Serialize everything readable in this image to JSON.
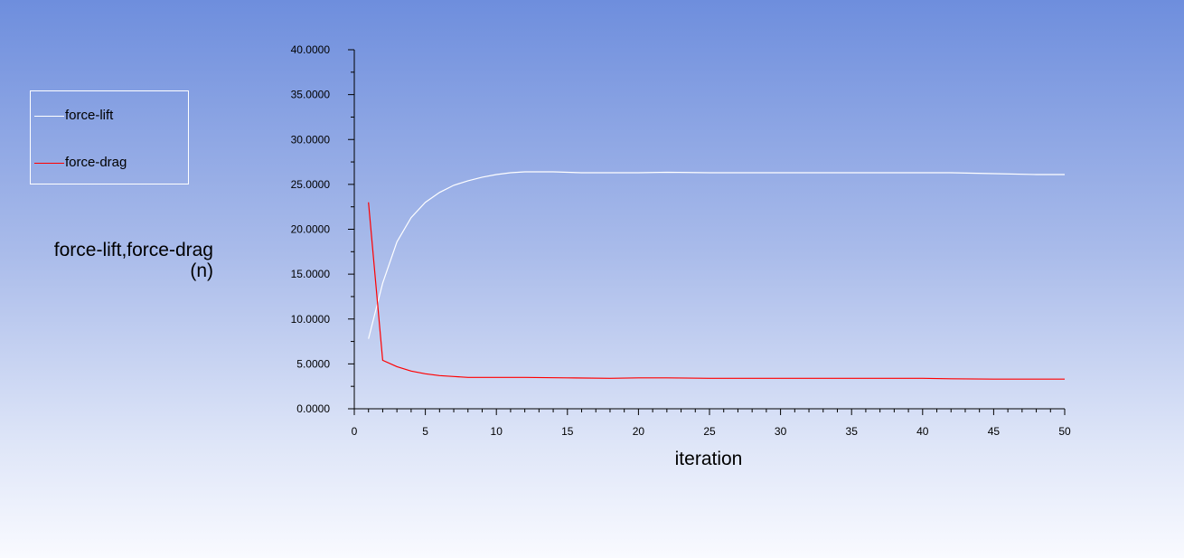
{
  "chart_data": {
    "type": "line",
    "xlabel": "iteration",
    "ylabel": "force-lift,force-drag",
    "yunit": "(n)",
    "xlim": [
      0,
      50
    ],
    "ylim": [
      0,
      40
    ],
    "xticks": [
      0,
      5,
      10,
      15,
      20,
      25,
      30,
      35,
      40,
      45,
      50
    ],
    "yticks": [
      0,
      5,
      10,
      15,
      20,
      25,
      30,
      35,
      40
    ],
    "ytick_labels": [
      "0.0000",
      "5.0000",
      "10.0000",
      "15.0000",
      "20.0000",
      "25.0000",
      "30.0000",
      "35.0000",
      "40.0000"
    ],
    "grid": false,
    "legend_position": "left",
    "series": [
      {
        "name": "force-lift",
        "color": "#ffffff",
        "x": [
          1,
          2,
          3,
          4,
          5,
          6,
          7,
          8,
          9,
          10,
          11,
          12,
          13,
          14,
          15,
          16,
          18,
          20,
          22,
          25,
          30,
          35,
          40,
          42,
          45,
          48,
          50
        ],
        "y": [
          7.8,
          14.0,
          18.6,
          21.3,
          23.0,
          24.1,
          24.9,
          25.4,
          25.8,
          26.1,
          26.3,
          26.4,
          26.4,
          26.4,
          26.35,
          26.3,
          26.3,
          26.3,
          26.35,
          26.3,
          26.3,
          26.3,
          26.3,
          26.3,
          26.2,
          26.1,
          26.1
        ]
      },
      {
        "name": "force-drag",
        "color": "#ff0000",
        "x": [
          1,
          2,
          3,
          4,
          5,
          6,
          7,
          8,
          9,
          10,
          12,
          15,
          18,
          20,
          22,
          25,
          30,
          35,
          40,
          42,
          45,
          48,
          50
        ],
        "y": [
          23.0,
          5.4,
          4.7,
          4.2,
          3.9,
          3.7,
          3.6,
          3.5,
          3.5,
          3.5,
          3.5,
          3.45,
          3.4,
          3.45,
          3.45,
          3.4,
          3.4,
          3.4,
          3.4,
          3.35,
          3.3,
          3.3,
          3.3
        ]
      }
    ]
  }
}
